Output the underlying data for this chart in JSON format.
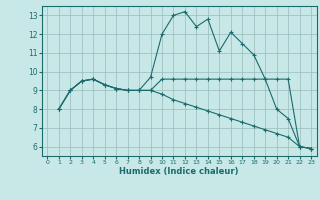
{
  "xlabel": "Humidex (Indice chaleur)",
  "bg_color": "#c8e8e8",
  "line_color": "#1a6b6b",
  "grid_color": "#99bbbb",
  "xlim": [
    -0.5,
    23.5
  ],
  "ylim": [
    5.5,
    13.5
  ],
  "xticks": [
    0,
    1,
    2,
    3,
    4,
    5,
    6,
    7,
    8,
    9,
    10,
    11,
    12,
    13,
    14,
    15,
    16,
    17,
    18,
    19,
    20,
    21,
    22,
    23
  ],
  "yticks": [
    6,
    7,
    8,
    9,
    10,
    11,
    12,
    13
  ],
  "line1_x": [
    1,
    2,
    3,
    4,
    5,
    6,
    7,
    8,
    9,
    10,
    11,
    12,
    13,
    14,
    15,
    16,
    17,
    18,
    19,
    20,
    21,
    22,
    23
  ],
  "line1_y": [
    8.0,
    9.0,
    9.5,
    9.6,
    9.3,
    9.1,
    9.0,
    9.0,
    9.7,
    12.0,
    13.0,
    13.2,
    12.4,
    12.8,
    11.1,
    12.1,
    11.5,
    10.9,
    9.6,
    8.0,
    7.5,
    6.0,
    5.9
  ],
  "line2_x": [
    1,
    2,
    3,
    4,
    5,
    6,
    7,
    8,
    9,
    10,
    11,
    12,
    13,
    14,
    15,
    16,
    17,
    18,
    19,
    20,
    21,
    22,
    23
  ],
  "line2_y": [
    8.0,
    9.0,
    9.5,
    9.6,
    9.3,
    9.1,
    9.0,
    9.0,
    9.0,
    9.6,
    9.6,
    9.6,
    9.6,
    9.6,
    9.6,
    9.6,
    9.6,
    9.6,
    9.6,
    9.6,
    9.6,
    6.0,
    5.9
  ],
  "line3_x": [
    1,
    2,
    3,
    4,
    5,
    6,
    7,
    8,
    9,
    10,
    11,
    12,
    13,
    14,
    15,
    16,
    17,
    18,
    19,
    20,
    21,
    22,
    23
  ],
  "line3_y": [
    8.0,
    9.0,
    9.5,
    9.6,
    9.3,
    9.1,
    9.0,
    9.0,
    9.0,
    8.8,
    8.5,
    8.3,
    8.1,
    7.9,
    7.7,
    7.5,
    7.3,
    7.1,
    6.9,
    6.7,
    6.5,
    6.0,
    5.9
  ]
}
